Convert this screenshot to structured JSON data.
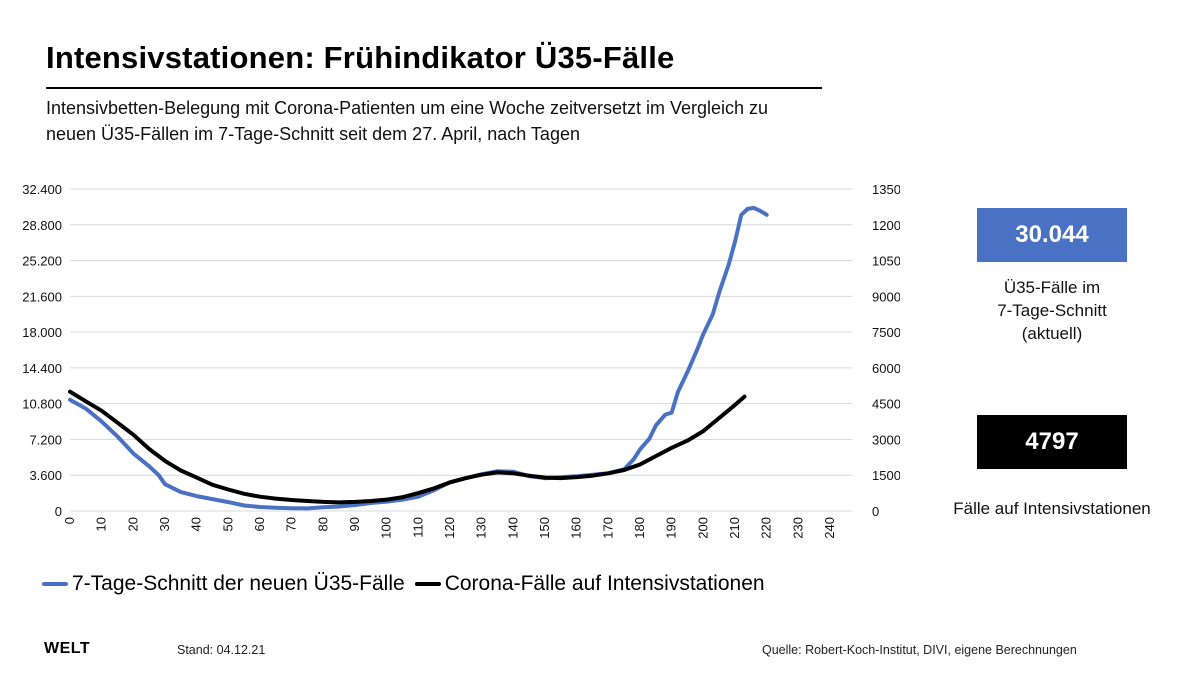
{
  "header": {
    "title": "Intensivstationen: Frühindikator Ü35-Fälle",
    "subtitle": "Intensivbetten-Belegung mit Corona-Patienten um eine Woche zeitversetzt im Vergleich zu neuen Ü35-Fällen im 7-Tage-Schnitt seit dem 27. April, nach Tagen"
  },
  "chart_data": {
    "type": "line",
    "xlim": [
      0,
      240
    ],
    "x_ticks": [
      "0",
      "10",
      "20",
      "30",
      "40",
      "50",
      "60",
      "70",
      "80",
      "90",
      "100",
      "110",
      "120",
      "130",
      "140",
      "150",
      "160",
      "170",
      "180",
      "190",
      "200",
      "210",
      "220",
      "230",
      "240"
    ],
    "y_left": {
      "lim": [
        0,
        32400
      ],
      "ticks": [
        "0",
        "3.600",
        "7.200",
        "10.800",
        "14.400",
        "18.000",
        "21.600",
        "25.200",
        "28.800",
        "32.400"
      ]
    },
    "y_right": {
      "lim": [
        0,
        13500
      ],
      "ticks": [
        "0",
        "1500",
        "3000",
        "4500",
        "6000",
        "7500",
        "9000",
        "10500",
        "12000",
        "13500"
      ]
    },
    "grid": "horizontal",
    "legend_position": "bottom",
    "series": [
      {
        "name": "7-Tage-Schnitt der neuen Ü35-Fälle",
        "axis": "left",
        "color": "#4a72c4",
        "x": [
          0,
          5,
          10,
          15,
          20,
          25,
          28,
          30,
          35,
          40,
          45,
          50,
          55,
          60,
          65,
          70,
          75,
          80,
          85,
          90,
          95,
          100,
          105,
          110,
          115,
          120,
          125,
          130,
          135,
          140,
          145,
          150,
          155,
          160,
          165,
          170,
          175,
          178,
          180,
          183,
          185,
          188,
          190,
          192,
          195,
          198,
          200,
          203,
          205,
          208,
          210,
          212,
          214,
          216,
          218,
          220
        ],
        "y": [
          11200,
          10300,
          9000,
          7500,
          5800,
          4500,
          3600,
          2700,
          1900,
          1500,
          1200,
          900,
          550,
          400,
          320,
          280,
          260,
          380,
          450,
          600,
          800,
          950,
          1150,
          1450,
          2100,
          2900,
          3300,
          3700,
          4000,
          3950,
          3500,
          3300,
          3400,
          3500,
          3650,
          3800,
          4200,
          5200,
          6200,
          7300,
          8600,
          9700,
          9900,
          12000,
          14000,
          16200,
          17800,
          19800,
          22000,
          24800,
          27100,
          29800,
          30400,
          30500,
          30200,
          29800
        ]
      },
      {
        "name": "Corona-Fälle auf Intensivstationen",
        "axis": "right",
        "color": "#000000",
        "x": [
          0,
          5,
          10,
          15,
          20,
          25,
          30,
          35,
          40,
          45,
          50,
          55,
          60,
          65,
          70,
          75,
          80,
          85,
          90,
          95,
          100,
          105,
          110,
          115,
          120,
          125,
          130,
          135,
          140,
          145,
          150,
          155,
          160,
          165,
          170,
          175,
          180,
          185,
          190,
          195,
          200,
          205,
          210,
          213
        ],
        "y": [
          5000,
          4600,
          4200,
          3700,
          3200,
          2600,
          2100,
          1700,
          1400,
          1100,
          900,
          720,
          600,
          520,
          460,
          420,
          380,
          360,
          380,
          420,
          480,
          580,
          750,
          950,
          1200,
          1380,
          1520,
          1620,
          1580,
          1480,
          1400,
          1380,
          1420,
          1480,
          1580,
          1720,
          1950,
          2300,
          2650,
          2950,
          3350,
          3900,
          4450,
          4797
        ]
      }
    ]
  },
  "legend": {
    "blue_label": "7-Tage-Schnitt der neuen Ü35-Fälle",
    "black_label": "Corona-Fälle auf Intensivstationen",
    "blue_color": "#4a72c4",
    "black_color": "#000000"
  },
  "kpis": {
    "cases_value": "30.044",
    "cases_label_line1": "Ü35-Fälle im",
    "cases_label_line2": "7-Tage-Schnitt",
    "cases_label_line3": "(aktuell)",
    "icu_value": "4797",
    "icu_label": "Fälle auf Intensivstationen"
  },
  "footer": {
    "brand": "WELT",
    "stand": "Stand:   04.12.21",
    "source": "Quelle: Robert-Koch-Institut, DIVI, eigene Berechnungen"
  }
}
